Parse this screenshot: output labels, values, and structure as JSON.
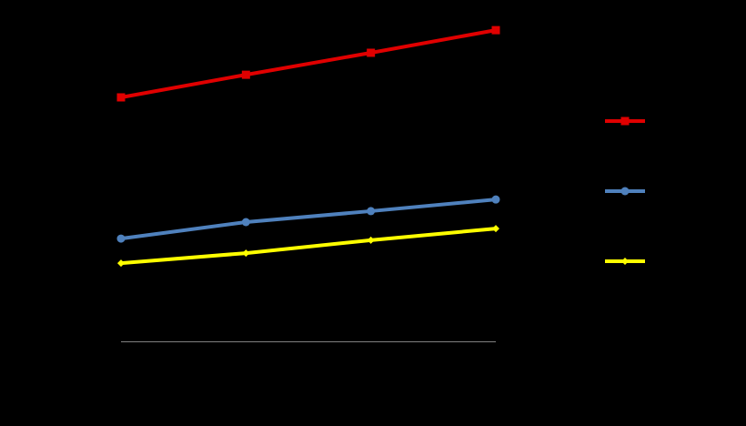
{
  "chart_data": {
    "type": "line",
    "categories": [
      null,
      null,
      null,
      null
    ],
    "series": [
      {
        "color": "#e00000",
        "marker": "square",
        "values": [
          75.5,
          82.5,
          89.3,
          96.3
        ]
      },
      {
        "color": "#4f81bd",
        "marker": "circle",
        "values": [
          31.8,
          36.9,
          40.3,
          43.9
        ]
      },
      {
        "color": "#ffff00",
        "marker": "diamond",
        "values": [
          24.2,
          27.3,
          31.3,
          34.9
        ]
      }
    ],
    "ylim": [
      0,
      100
    ],
    "legend": "right"
  }
}
